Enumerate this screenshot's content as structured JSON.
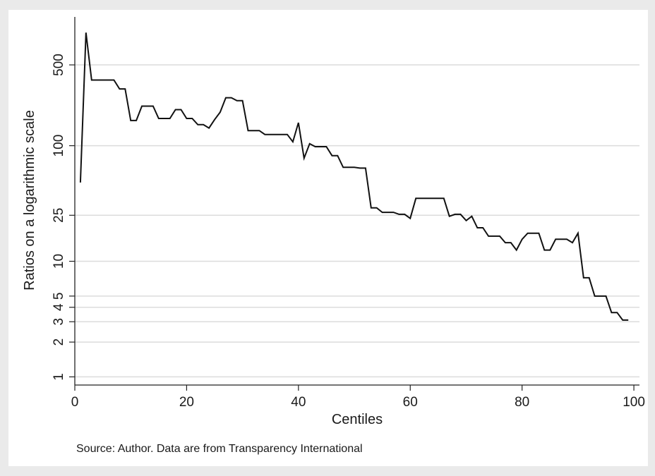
{
  "chart_data": {
    "type": "line",
    "xlabel": "Centiles",
    "ylabel": "Ratios on a logarithmic scale",
    "y_scale": "log",
    "grid": true,
    "xlim": [
      0,
      101
    ],
    "ylim": [
      0.85,
      1300
    ],
    "xticks": [
      0,
      20,
      40,
      60,
      80,
      100
    ],
    "yticks": [
      {
        "value": 1,
        "label": "1"
      },
      {
        "value": 2,
        "label": "2"
      },
      {
        "value": 3,
        "label": "3"
      },
      {
        "value": 4,
        "label": "4"
      },
      {
        "value": 5,
        "label": "5"
      },
      {
        "value": 10,
        "label": "10"
      },
      {
        "value": 25,
        "label": "25"
      },
      {
        "value": 100,
        "label": "100"
      },
      {
        "value": 500,
        "label": "500"
      }
    ],
    "series": [
      {
        "x": [
          1,
          2,
          3,
          4,
          5,
          6,
          7,
          8,
          9,
          10,
          11,
          12,
          13,
          14,
          15,
          16,
          17,
          18,
          19,
          20,
          21,
          22,
          23,
          24,
          25,
          26,
          27,
          28,
          29,
          30,
          31,
          32,
          33,
          34,
          35,
          36,
          37,
          38,
          39,
          40,
          41,
          42,
          43,
          44,
          45,
          46,
          47,
          48,
          49,
          50,
          51,
          52,
          53,
          54,
          55,
          56,
          57,
          58,
          59,
          60,
          61,
          62,
          63,
          64,
          65,
          66,
          67,
          68,
          69,
          70,
          71,
          72,
          73,
          74,
          75,
          76,
          77,
          78,
          79,
          80,
          81,
          82,
          83,
          84,
          85,
          86,
          87,
          88,
          89,
          90,
          91,
          92,
          93,
          94,
          95,
          96,
          97,
          98,
          99
        ],
        "y": [
          48,
          950,
          370,
          370,
          370,
          370,
          370,
          310,
          310,
          165,
          165,
          220,
          220,
          220,
          172,
          172,
          172,
          205,
          205,
          172,
          172,
          152,
          152,
          142,
          168,
          195,
          260,
          260,
          245,
          245,
          135,
          135,
          135,
          125,
          125,
          125,
          125,
          125,
          108,
          158,
          78,
          104,
          98,
          98,
          98,
          82,
          82,
          65,
          65,
          65,
          64,
          64,
          29,
          29,
          26.5,
          26.5,
          26.5,
          25.5,
          25.5,
          23.5,
          35,
          35,
          35,
          35,
          35,
          35,
          24.5,
          25.5,
          25.5,
          22.5,
          24.5,
          19.5,
          19.5,
          16.5,
          16.5,
          16.5,
          14.5,
          14.5,
          12.5,
          15.5,
          17.5,
          17.5,
          17.5,
          12.5,
          12.5,
          15.5,
          15.5,
          15.5,
          14.5,
          17.5,
          7.2,
          7.2,
          5.0,
          5.0,
          5.0,
          3.6,
          3.6,
          3.1,
          3.1
        ]
      }
    ]
  },
  "source_note": "Source: Author. Data are from Transparency International"
}
